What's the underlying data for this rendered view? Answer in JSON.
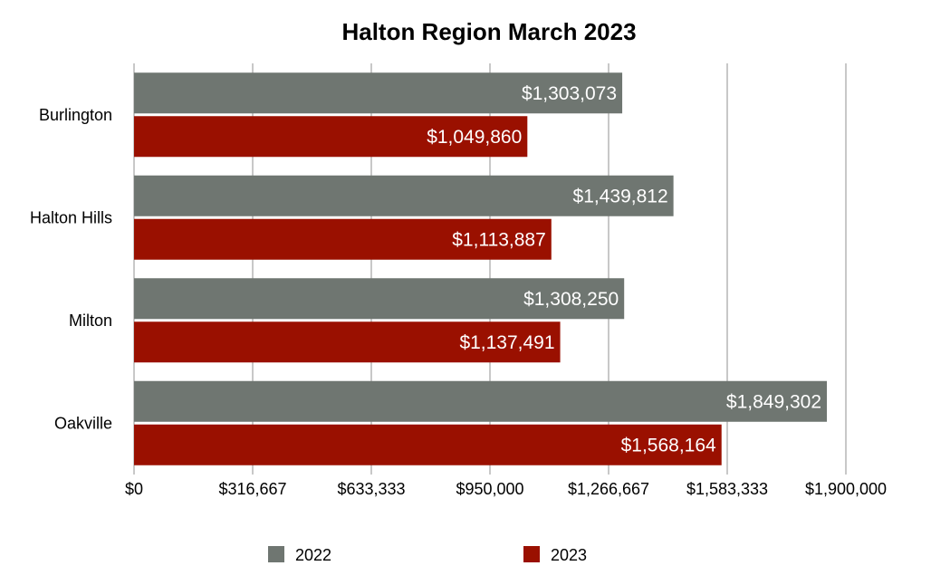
{
  "chart_data": {
    "type": "bar",
    "orientation": "horizontal",
    "title": "Halton Region March 2023",
    "xlabel": "",
    "ylabel": "",
    "categories": [
      "Burlington",
      "Halton Hills",
      "Milton",
      "Oakville"
    ],
    "series": [
      {
        "name": "2022",
        "color": "#6f7671",
        "values": [
          1303073,
          1439812,
          1308250,
          1849302
        ],
        "labels": [
          "$1,303,073",
          "$1,439,812",
          "$1,308,250",
          "$1,849,302"
        ]
      },
      {
        "name": "2023",
        "color": "#9a1000",
        "values": [
          1049860,
          1113887,
          1137491,
          1568164
        ],
        "labels": [
          "$1,049,860",
          "$1,113,887",
          "$1,137,491",
          "$1,568,164"
        ]
      }
    ],
    "xlim": [
      0,
      1900000
    ],
    "xticks": [
      0,
      316667,
      633333,
      950000,
      1266667,
      1583333,
      1900000
    ],
    "xtick_labels": [
      "$0",
      "$316,667",
      "$633,333",
      "$950,000",
      "$1,266,667",
      "$1,583,333",
      "$1,900,000"
    ],
    "grid": true,
    "legend_position": "bottom"
  }
}
